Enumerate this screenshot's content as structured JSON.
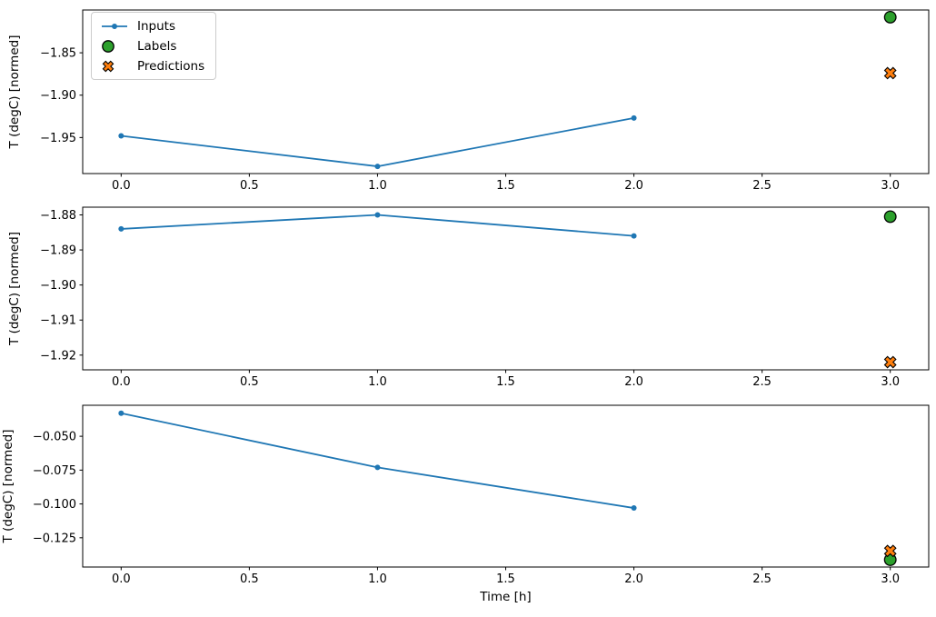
{
  "figure": {
    "background": "#ffffff",
    "colors": {
      "inputs": "#1f77b4",
      "labels": "#2ca02c",
      "predictions": "#ff7f0e",
      "marker_edge": "#000000",
      "axis": "#000000",
      "text": "#000000",
      "legend_border": "#cccccc"
    },
    "legend": {
      "position": "upper left of first subplot",
      "items": [
        {
          "label": "Inputs",
          "marker": "line-with-dot"
        },
        {
          "label": "Labels",
          "marker": "filled-circle"
        },
        {
          "label": "Predictions",
          "marker": "filled-x"
        }
      ]
    }
  },
  "chart_data": [
    {
      "type": "line",
      "title": "",
      "xlabel": "",
      "ylabel": "T (degC) [normed]",
      "xlim": [
        -0.15,
        3.15
      ],
      "ylim": [
        -1.9925,
        -1.7995
      ],
      "grid": false,
      "legend_visible": true,
      "xticks": {
        "values": [
          0,
          0.5,
          1,
          1.5,
          2,
          2.5,
          3
        ],
        "labels": [
          "0.0",
          "0.5",
          "1.0",
          "1.5",
          "2.0",
          "2.5",
          "3.0"
        ]
      },
      "yticks": {
        "values": [
          -1.85,
          -1.9,
          -1.95
        ],
        "labels": [
          "−1.85",
          "−1.90",
          "−1.95"
        ]
      },
      "series": [
        {
          "name": "Inputs",
          "style": "line+dot",
          "x": [
            0,
            1,
            2
          ],
          "y": [
            -1.948,
            -1.984,
            -1.927
          ]
        },
        {
          "name": "Labels",
          "style": "circle",
          "x": [
            3
          ],
          "y": [
            -1.808
          ]
        },
        {
          "name": "Predictions",
          "style": "x",
          "x": [
            3
          ],
          "y": [
            -1.874
          ]
        }
      ]
    },
    {
      "type": "line",
      "title": "",
      "xlabel": "",
      "ylabel": "T (degC) [normed]",
      "xlim": [
        -0.15,
        3.15
      ],
      "ylim": [
        -1.9242,
        -1.8778
      ],
      "grid": false,
      "legend_visible": false,
      "xticks": {
        "values": [
          0,
          0.5,
          1,
          1.5,
          2,
          2.5,
          3
        ],
        "labels": [
          "0.0",
          "0.5",
          "1.0",
          "1.5",
          "2.0",
          "2.5",
          "3.0"
        ]
      },
      "yticks": {
        "values": [
          -1.88,
          -1.89,
          -1.9,
          -1.91,
          -1.92
        ],
        "labels": [
          "−1.88",
          "−1.89",
          "−1.90",
          "−1.91",
          "−1.92"
        ]
      },
      "series": [
        {
          "name": "Inputs",
          "style": "line+dot",
          "x": [
            0,
            1,
            2
          ],
          "y": [
            -1.884,
            -1.88,
            -1.886
          ]
        },
        {
          "name": "Labels",
          "style": "circle",
          "x": [
            3
          ],
          "y": [
            -1.8805
          ]
        },
        {
          "name": "Predictions",
          "style": "x",
          "x": [
            3
          ],
          "y": [
            -1.922
          ]
        }
      ]
    },
    {
      "type": "line",
      "title": "",
      "xlabel": "Time [h]",
      "ylabel": "T (degC) [normed]",
      "xlim": [
        -0.15,
        3.15
      ],
      "ylim": [
        -0.1466,
        -0.0271
      ],
      "grid": false,
      "legend_visible": false,
      "xticks": {
        "values": [
          0,
          0.5,
          1,
          1.5,
          2,
          2.5,
          3
        ],
        "labels": [
          "0.0",
          "0.5",
          "1.0",
          "1.5",
          "2.0",
          "2.5",
          "3.0"
        ]
      },
      "yticks": {
        "values": [
          -0.05,
          -0.075,
          -0.1,
          -0.125
        ],
        "labels": [
          "−0.050",
          "−0.075",
          "−0.100",
          "−0.125"
        ]
      },
      "series": [
        {
          "name": "Inputs",
          "style": "line+dot",
          "x": [
            0,
            1,
            2
          ],
          "y": [
            -0.033,
            -0.073,
            -0.103
          ]
        },
        {
          "name": "Labels",
          "style": "circle",
          "x": [
            3
          ],
          "y": [
            -0.1412
          ]
        },
        {
          "name": "Predictions",
          "style": "x",
          "x": [
            3
          ],
          "y": [
            -0.1347
          ]
        }
      ]
    }
  ]
}
